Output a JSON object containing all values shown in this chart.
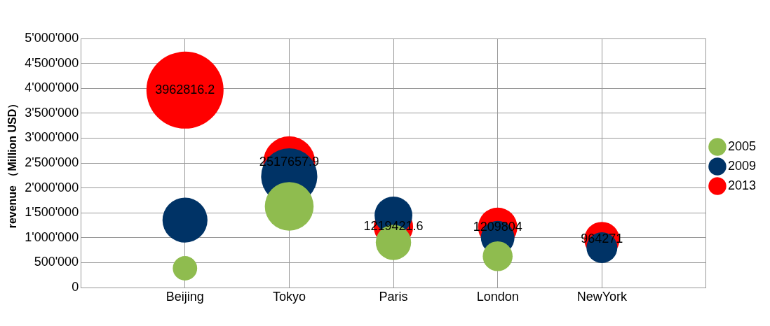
{
  "chart_data": {
    "type": "bubble",
    "ylabel": "revenue （Million USD）",
    "categories": [
      "Beijing",
      "Tokyo",
      "Paris",
      "London",
      "NewYork"
    ],
    "series": [
      {
        "name": "2005",
        "color": "#8fbc4f",
        "values": [
          386000,
          1630000,
          906000,
          628000,
          null
        ],
        "sizes": [
          0.1,
          0.4,
          0.21,
          0.15,
          null
        ]
      },
      {
        "name": "2009",
        "color": "#003366",
        "values": [
          1353000,
          2234000,
          1449000,
          1000000,
          800000
        ],
        "sizes": [
          0.34,
          0.53,
          0.24,
          0.19,
          0.16
        ]
      },
      {
        "name": "2013",
        "color": "#ff0000",
        "values": [
          3962816.2,
          2517657.9,
          1219421.6,
          1209804,
          964271
        ],
        "sizes": [
          1,
          0.45,
          0.26,
          0.26,
          0.21
        ],
        "value_labels": [
          "3962816.2",
          "2517657.9",
          "1219421.6",
          "1209804",
          "964271"
        ]
      }
    ],
    "ylim": [
      0,
      5000000
    ],
    "yticks": [
      0,
      {
        "value": 500000,
        "label": "500'000"
      },
      {
        "value": 1000000,
        "label": "1'000'000"
      },
      {
        "value": 1500000,
        "label": "1'500'000"
      },
      {
        "value": 2000000,
        "label": "2'000'000"
      },
      {
        "value": 2500000,
        "label": "2'500'000"
      },
      {
        "value": 3000000,
        "label": "3'000'000"
      },
      {
        "value": 3500000,
        "label": "3'500'000"
      },
      {
        "value": 4000000,
        "label": "4'000'000"
      },
      {
        "value": 4500000,
        "label": "4'500'000"
      },
      {
        "value": 5000000,
        "label": "5'000'000"
      }
    ],
    "grid": true,
    "legend": "right"
  }
}
